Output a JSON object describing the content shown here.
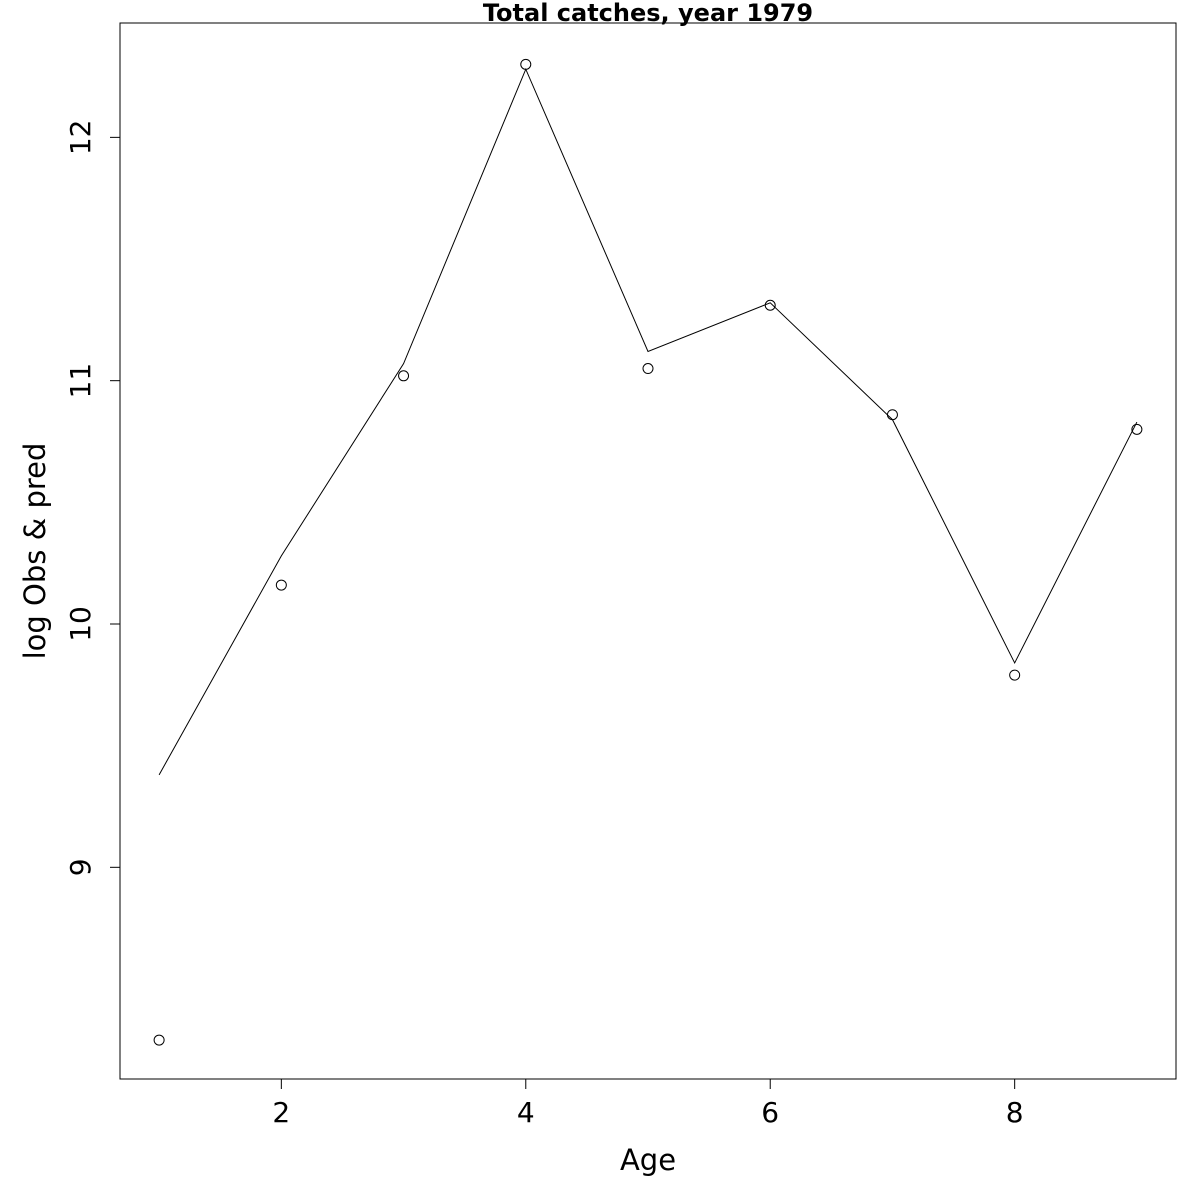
{
  "chart_data": {
    "type": "line",
    "title": "Total catches, year 1979",
    "x_label": "Age",
    "y_label": "log Obs & pred",
    "x": [
      1,
      2,
      3,
      4,
      5,
      6,
      7,
      8,
      9
    ],
    "series": [
      {
        "style": "points",
        "color": "#000000",
        "values": [
          8.29,
          10.16,
          11.02,
          12.3,
          11.05,
          11.31,
          10.86,
          9.79,
          10.8
        ]
      },
      {
        "style": "line",
        "color": "#000000",
        "values": [
          9.38,
          10.28,
          11.07,
          12.28,
          11.12,
          11.32,
          10.84,
          9.84,
          10.83
        ]
      }
    ],
    "xlim": [
      0.68,
      9.32
    ],
    "ylim": [
      8.13,
      12.47
    ],
    "xticks": [
      2,
      4,
      6,
      8
    ],
    "yticks": [
      9,
      10,
      11,
      12
    ],
    "grid": false
  }
}
